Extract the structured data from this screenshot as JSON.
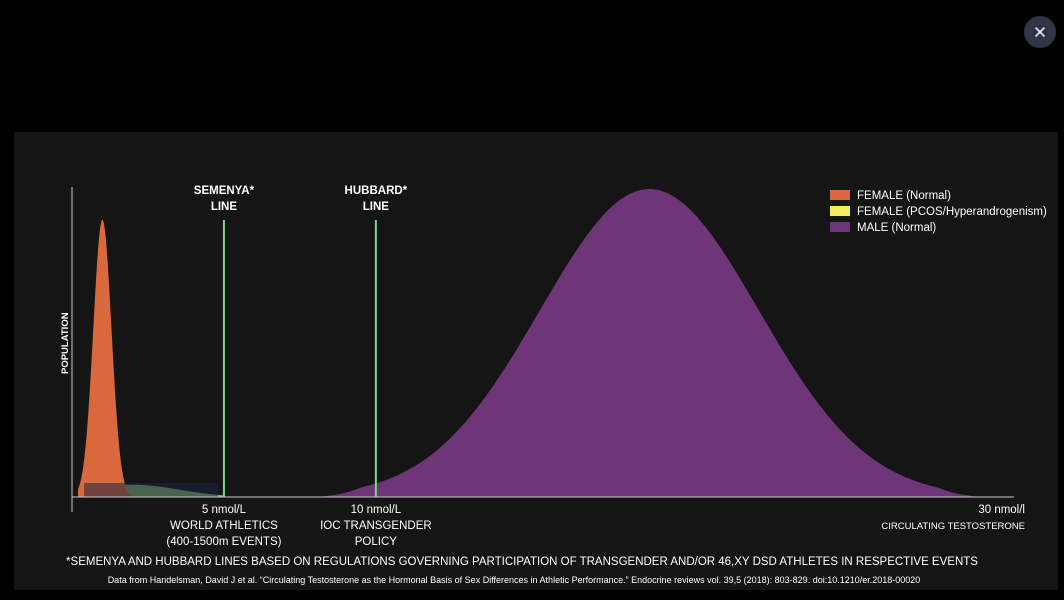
{
  "close_button": {
    "icon": "close-icon"
  },
  "chart_data": {
    "type": "area",
    "ylabel": "POPULATION",
    "xlabel": "CIRCULATING TESTOSTERONE",
    "x_unit": "nmol/L",
    "xlim": [
      0,
      31
    ],
    "series": [
      {
        "name": "FEMALE (Normal)",
        "color": "#d9693c",
        "peak_x": 1.0,
        "peak_level": 0.9
      },
      {
        "name": "FEMALE (PCOS/Hyperandrogenism)",
        "color": "#f2ec5c",
        "peak_x": 2.0,
        "peak_level": 0.04
      },
      {
        "name": "MALE (Normal)",
        "color": "#6e3578",
        "peak_x": 19.0,
        "peak_level": 1.0,
        "range": [
          8,
          30
        ]
      }
    ],
    "reference_lines": [
      {
        "x": 5,
        "title_lines": [
          "SEMENYA*",
          "LINE"
        ],
        "tick_label": "5 nmol/L",
        "caption_lines": [
          "WORLD ATHLETICS",
          "(400-1500m EVENTS)"
        ],
        "color": "#7fd67f"
      },
      {
        "x": 10,
        "title_lines": [
          "HUBBARD*",
          "LINE"
        ],
        "tick_label": "10 nmol/L",
        "caption_lines": [
          "IOC TRANSGENDER",
          "POLICY"
        ],
        "color": "#7fd67f"
      }
    ],
    "x_end_label": "30 nmol/l",
    "legend_position": "top-right",
    "footnote": "*SEMENYA AND HUBBARD LINES BASED ON REGULATIONS GOVERNING PARTICIPATION OF TRANSGENDER AND/OR 46,XY DSD ATHLETES IN RESPECTIVE EVENTS",
    "source": "Data from Handelsman, David J et al. “Circulating Testosterone as the Hormonal Basis of Sex Differences in Athletic Performance.” Endocrine reviews vol. 39,5 (2018): 803-829. doi:10.1210/er.2018-00020"
  }
}
